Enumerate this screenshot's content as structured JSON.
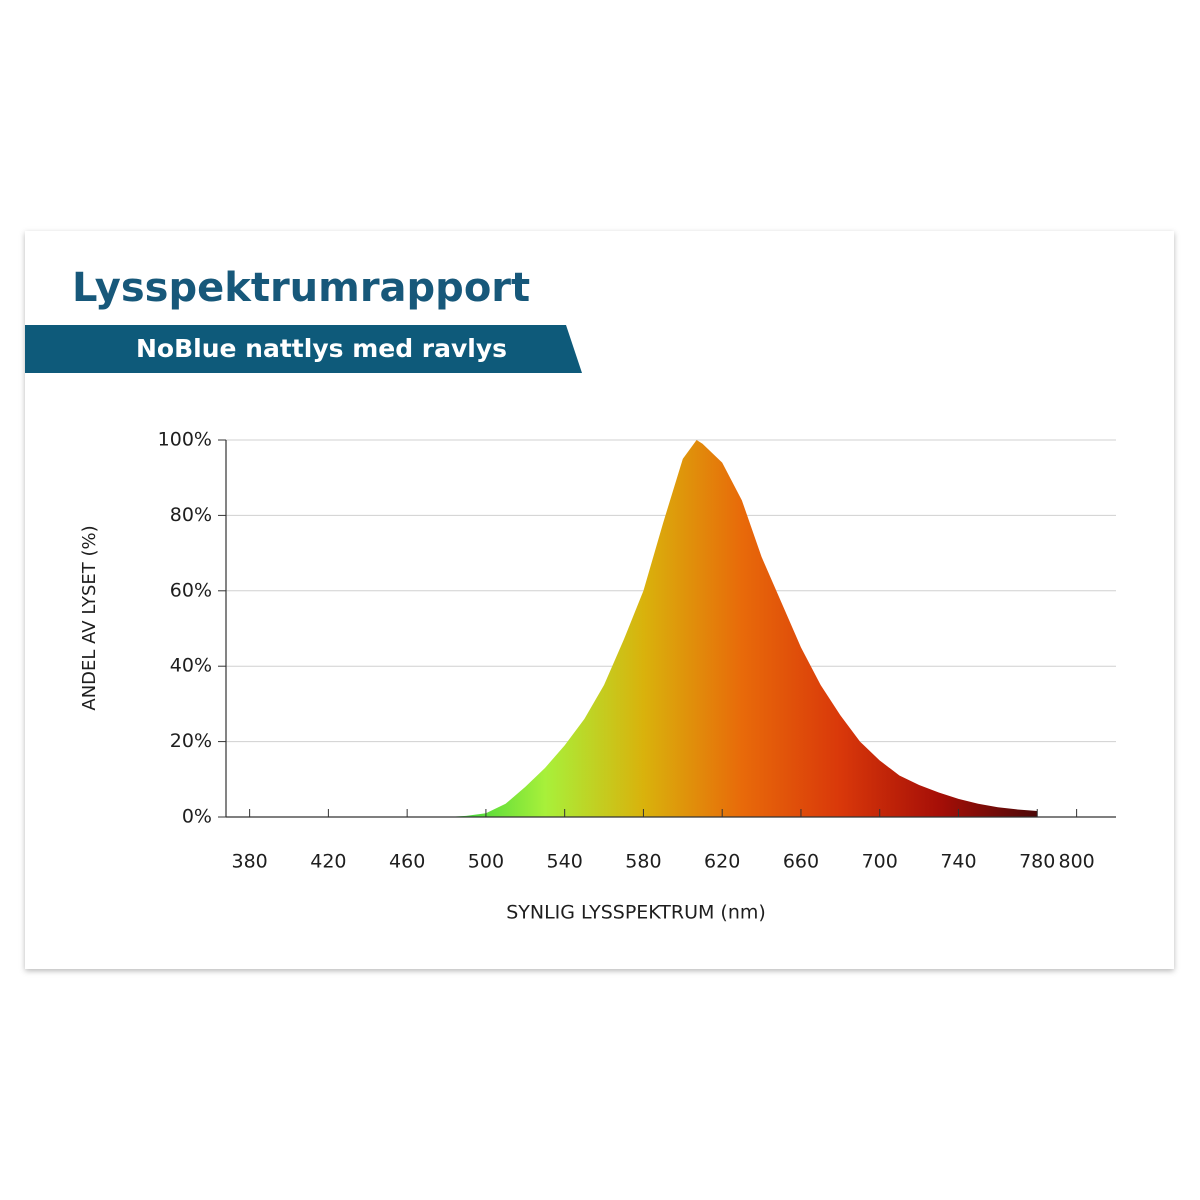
{
  "chart_data": {
    "type": "area",
    "title": "Lysspektrumrapport",
    "subtitle": "NoBlue nattlys med ravlys",
    "x_label": "SYNLIG LYSSPEKTRUM (nm)",
    "y_label": "ANDEL AV LYSET (%)",
    "x": [
      470,
      480,
      490,
      500,
      510,
      520,
      530,
      540,
      550,
      560,
      570,
      580,
      590,
      600,
      607,
      610,
      620,
      630,
      640,
      650,
      660,
      670,
      680,
      690,
      700,
      710,
      720,
      730,
      740,
      750,
      760,
      770,
      780
    ],
    "values": [
      0,
      0,
      0.3,
      1,
      3.5,
      8,
      13,
      19,
      26,
      35,
      47,
      60,
      78,
      95,
      100,
      99,
      94,
      84,
      69,
      57,
      45,
      35,
      27,
      20,
      15,
      11,
      8.5,
      6.5,
      4.8,
      3.5,
      2.6,
      2,
      1.6
    ],
    "gradient": [
      "#2fd13c",
      "#a8f03a",
      "#d9b20c",
      "#e86a0a",
      "#d9380a",
      "#a60f07",
      "#4d0808"
    ],
    "xlim": [
      368,
      820
    ],
    "xticks": [
      380,
      420,
      460,
      500,
      540,
      580,
      620,
      660,
      700,
      740,
      780,
      800
    ],
    "ylim": [
      0,
      100
    ],
    "yticks": [
      {
        "value": 0,
        "label": "0%"
      },
      {
        "value": 20,
        "label": "20%"
      },
      {
        "value": 40,
        "label": "40%"
      },
      {
        "value": 60,
        "label": "60%"
      },
      {
        "value": 80,
        "label": "80%"
      },
      {
        "value": 100,
        "label": "100%"
      }
    ],
    "grid": true
  }
}
